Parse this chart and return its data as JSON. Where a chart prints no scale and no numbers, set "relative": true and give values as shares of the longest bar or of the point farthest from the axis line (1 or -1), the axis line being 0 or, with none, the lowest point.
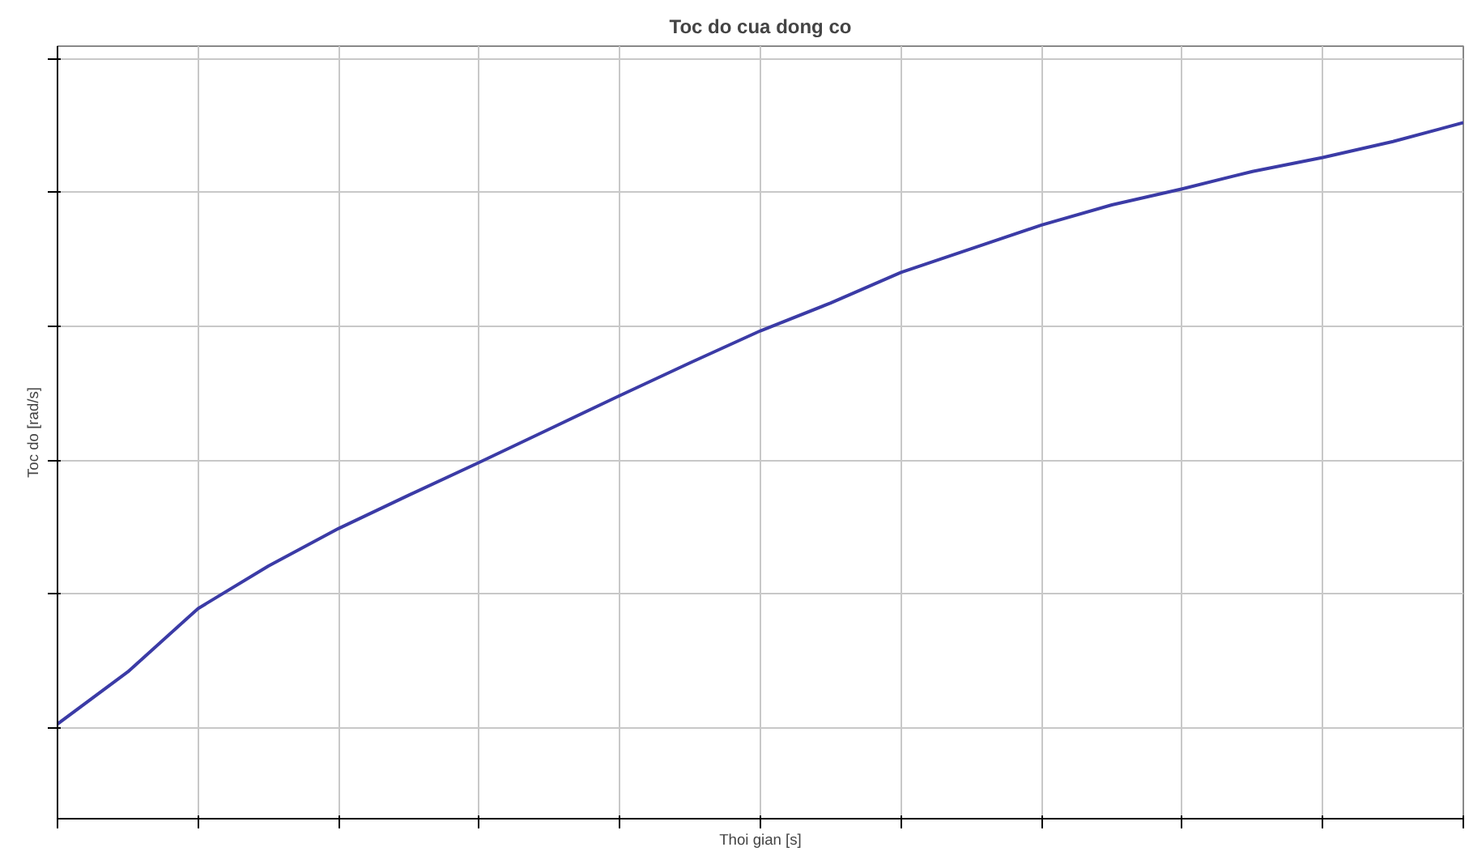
{
  "chart_data": {
    "type": "line",
    "title": "Toc do cua dong co",
    "xlabel": "Thoi gian [s]",
    "ylabel": "Toc do [rad/s]",
    "relative": true,
    "grid": true,
    "marker": "none",
    "line_style": "solid",
    "categories": [
      null,
      null,
      null,
      null,
      null,
      null,
      null,
      null,
      null,
      null,
      null,
      null,
      null,
      null,
      null,
      null,
      null,
      null,
      null,
      null,
      null
    ],
    "series": [
      {
        "color": "#3b3ba6",
        "values": [
          0.136,
          0.211,
          0.302,
          0.363,
          0.417,
          0.465,
          0.512,
          0.56,
          0.608,
          0.655,
          0.701,
          0.741,
          0.785,
          0.819,
          0.853,
          0.882,
          0.905,
          0.93,
          0.95,
          0.973,
          1.0
        ]
      }
    ]
  }
}
